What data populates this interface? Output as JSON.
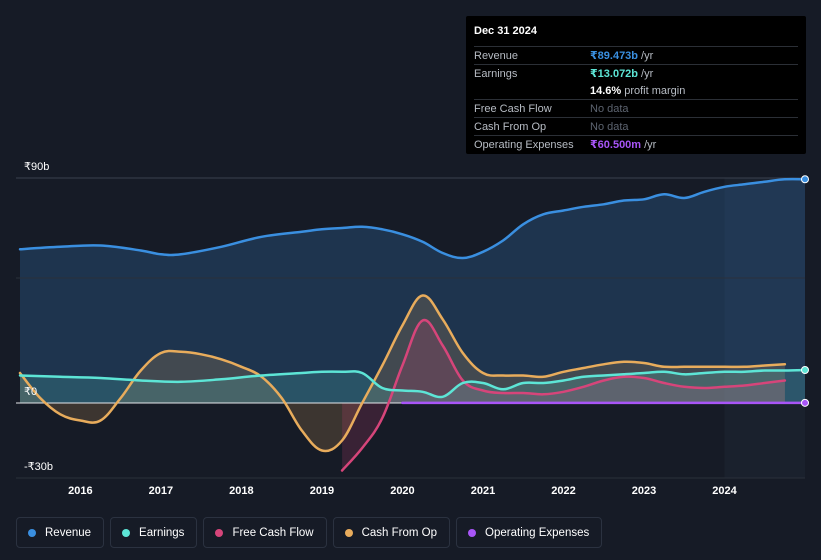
{
  "tooltip": {
    "date": "Dec 31 2024",
    "rows": {
      "revenue": {
        "label": "Revenue",
        "value": "₹89.473b",
        "unit": "/yr",
        "color": "#3a8fe0"
      },
      "earnings": {
        "label": "Earnings",
        "value": "₹13.072b",
        "unit": "/yr",
        "color": "#5de5d6"
      },
      "margin": {
        "value": "14.6%",
        "unit": "profit margin"
      },
      "fcf": {
        "label": "Free Cash Flow",
        "value": "No data"
      },
      "cfo": {
        "label": "Cash From Op",
        "value": "No data"
      },
      "opex": {
        "label": "Operating Expenses",
        "value": "₹60.500m",
        "unit": "/yr",
        "color": "#a855f7"
      }
    }
  },
  "legend": {
    "revenue": {
      "label": "Revenue",
      "color": "#3a8fe0"
    },
    "earnings": {
      "label": "Earnings",
      "color": "#5de5d6"
    },
    "fcf": {
      "label": "Free Cash Flow",
      "color": "#d6457a"
    },
    "cfo": {
      "label": "Cash From Op",
      "color": "#e8ac5c"
    },
    "opex": {
      "label": "Operating Expenses",
      "color": "#a855f7"
    }
  },
  "chart_data": {
    "type": "line",
    "title": "",
    "y_tick_labels": [
      "₹90b",
      "₹0",
      "-₹30b"
    ],
    "y_ticks": [
      90,
      0,
      -30
    ],
    "ylim": [
      -30,
      90
    ],
    "xlim": [
      2015.2,
      2025.0
    ],
    "x_tick_labels": [
      "2016",
      "2017",
      "2018",
      "2019",
      "2020",
      "2021",
      "2022",
      "2023",
      "2024"
    ],
    "x_ticks": [
      2016,
      2017,
      2018,
      2019,
      2020,
      2021,
      2022,
      2023,
      2024
    ],
    "shaded_from": 2024.0,
    "series": [
      {
        "name": "Revenue",
        "color": "#3a8fe0",
        "fill": true,
        "x": [
          2015.25,
          2015.75,
          2016.25,
          2016.75,
          2017.0,
          2017.25,
          2017.75,
          2018.25,
          2018.75,
          2019.0,
          2019.25,
          2019.5,
          2019.75,
          2020.0,
          2020.25,
          2020.5,
          2020.75,
          2021.0,
          2021.25,
          2021.5,
          2021.75,
          2022.0,
          2022.25,
          2022.5,
          2022.75,
          2023.0,
          2023.25,
          2023.5,
          2023.75,
          2024.0,
          2024.25,
          2024.5,
          2024.75,
          2025.0
        ],
        "values": [
          61.5,
          62.5,
          63.0,
          61.0,
          59.5,
          59.5,
          62.5,
          66.5,
          68.5,
          69.5,
          70.0,
          70.5,
          69.5,
          67.5,
          64.5,
          60.0,
          58.0,
          60.5,
          65.0,
          71.5,
          75.5,
          77.0,
          78.5,
          79.5,
          81.0,
          81.5,
          83.5,
          82.0,
          84.5,
          86.5,
          87.5,
          88.5,
          89.5,
          89.5
        ]
      },
      {
        "name": "Earnings",
        "color": "#5de5d6",
        "fill": true,
        "x": [
          2015.25,
          2015.75,
          2016.25,
          2016.75,
          2017.25,
          2017.75,
          2018.25,
          2018.75,
          2019.0,
          2019.25,
          2019.5,
          2019.75,
          2020.0,
          2020.25,
          2020.5,
          2020.75,
          2021.0,
          2021.25,
          2021.5,
          2021.75,
          2022.0,
          2022.25,
          2022.5,
          2022.75,
          2023.0,
          2023.25,
          2023.5,
          2023.75,
          2024.0,
          2024.25,
          2024.5,
          2024.75,
          2025.0
        ],
        "values": [
          11.0,
          10.5,
          10.0,
          9.0,
          8.5,
          9.5,
          11.0,
          12.0,
          12.5,
          12.5,
          12.0,
          6.0,
          5.0,
          4.5,
          2.5,
          8.0,
          8.0,
          5.5,
          8.0,
          8.0,
          9.0,
          10.5,
          11.0,
          11.5,
          12.0,
          12.5,
          11.5,
          12.0,
          12.5,
          12.5,
          13.0,
          13.0,
          13.2
        ]
      },
      {
        "name": "Free Cash Flow",
        "color": "#d6457a",
        "fill": true,
        "x": [
          2019.25,
          2019.5,
          2019.75,
          2020.0,
          2020.25,
          2020.5,
          2020.75,
          2021.0,
          2021.25,
          2021.5,
          2021.75,
          2022.0,
          2022.25,
          2022.5,
          2022.75,
          2023.0,
          2023.25,
          2023.5,
          2023.75,
          2024.0,
          2024.25,
          2024.5,
          2024.75
        ],
        "values": [
          -27.0,
          -18.0,
          -6.0,
          15.0,
          33.0,
          23.0,
          9.0,
          5.0,
          4.0,
          4.0,
          3.5,
          4.5,
          6.5,
          9.0,
          10.5,
          10.0,
          8.0,
          6.5,
          6.0,
          6.5,
          7.0,
          8.0,
          9.0
        ]
      },
      {
        "name": "Cash From Op",
        "color": "#e8ac5c",
        "fill": true,
        "x": [
          2015.25,
          2015.5,
          2015.75,
          2016.0,
          2016.25,
          2016.5,
          2016.75,
          2017.0,
          2017.25,
          2017.5,
          2017.75,
          2018.0,
          2018.25,
          2018.5,
          2018.75,
          2019.0,
          2019.25,
          2019.5,
          2019.75,
          2020.0,
          2020.25,
          2020.5,
          2020.75,
          2021.0,
          2021.25,
          2021.5,
          2021.75,
          2022.0,
          2022.25,
          2022.5,
          2022.75,
          2023.0,
          2023.25,
          2023.5,
          2023.75,
          2024.0,
          2024.25,
          2024.5,
          2024.75
        ],
        "values": [
          12.0,
          2.0,
          -4.5,
          -7.0,
          -7.0,
          2.0,
          13.0,
          20.0,
          20.5,
          19.5,
          17.5,
          14.5,
          10.5,
          2.0,
          -11.0,
          -19.0,
          -15.0,
          0.0,
          15.0,
          31.0,
          43.0,
          33.5,
          20.0,
          12.0,
          11.0,
          11.0,
          10.5,
          12.5,
          14.0,
          15.5,
          16.5,
          16.0,
          14.5,
          14.5,
          14.5,
          14.5,
          14.5,
          15.0,
          15.5
        ]
      },
      {
        "name": "Operating Expenses",
        "color": "#a855f7",
        "fill": false,
        "x": [
          2020.0,
          2021.0,
          2022.0,
          2023.0,
          2024.0,
          2025.0
        ],
        "values": [
          0.06,
          0.06,
          0.06,
          0.06,
          0.06,
          0.06
        ]
      }
    ]
  }
}
